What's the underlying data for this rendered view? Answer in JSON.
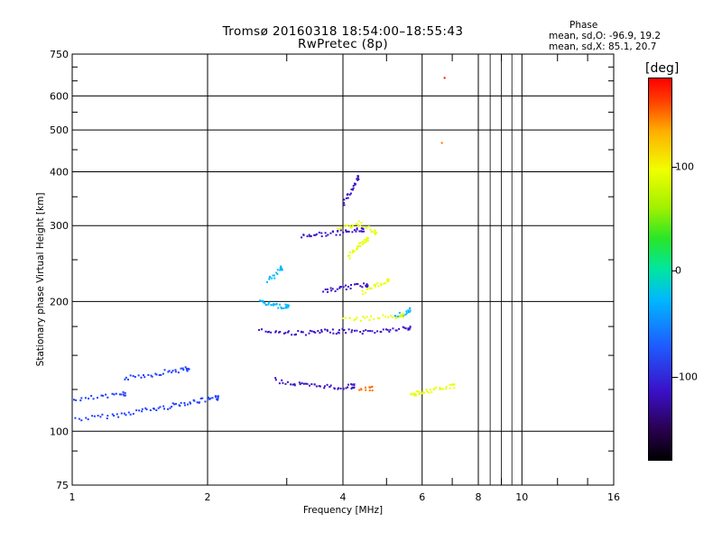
{
  "header": {
    "title_line1": "Tromsø 20160318 18:54:00–18:55:43",
    "title_line2": "RwPretec (8p)"
  },
  "phase_box": {
    "heading": "Phase",
    "line_o": "mean, sd,O: -96.9, 19.2",
    "line_x": "mean, sd,X:  85.1, 20.7"
  },
  "colorbar": {
    "unit": "[deg]",
    "ticks": [
      "100",
      "0",
      "-100"
    ],
    "colors": [
      "#000000",
      "#3a10c8",
      "#1e5cff",
      "#00b8ff",
      "#00e6a0",
      "#28e628",
      "#f0ff00",
      "#ffb000",
      "#ff0000"
    ]
  },
  "chart_data": {
    "type": "scatter",
    "xlabel": "Frequency [MHz]",
    "ylabel": "Stationary phase Virtual Height [km]",
    "xscale": "log",
    "yscale": "log",
    "xlim": [
      1,
      16
    ],
    "ylim": [
      75,
      750
    ],
    "xticks": [
      "1",
      "2",
      "4",
      "6",
      "8",
      "10",
      "16"
    ],
    "xtick_values": [
      1,
      2,
      4,
      6,
      8,
      10,
      16
    ],
    "yticks": [
      "750",
      "600",
      "500",
      "400",
      "300",
      "200",
      "100",
      "75"
    ],
    "ytick_values": [
      750,
      600,
      500,
      400,
      300,
      200,
      100,
      75
    ],
    "grid": true,
    "series": [
      {
        "color": "#1e40ff",
        "traces": [
          {
            "f": [
              1.0,
              1.1,
              1.2,
              1.3,
              1.4,
              1.5,
              1.6,
              1.7,
              1.8,
              1.9,
              2.0,
              2.1
            ],
            "h": [
              107,
              108,
              109,
              110,
              112,
              113,
              114,
              116,
              117,
              118,
              119,
              120
            ]
          },
          {
            "f": [
              1.3,
              1.4,
              1.5,
              1.6,
              1.7,
              1.8
            ],
            "h": [
              133,
              135,
              136,
              138,
              139,
              140
            ]
          },
          {
            "f": [
              1.0,
              1.1,
              1.2,
              1.3
            ],
            "h": [
              118,
              120,
              121,
              123
            ]
          }
        ]
      },
      {
        "color": "#3a10c8",
        "traces": [
          {
            "f": [
              2.6,
              2.8,
              3.0,
              3.2,
              3.4,
              3.6,
              3.8,
              4.0,
              4.3,
              4.6,
              4.9,
              5.2,
              5.6
            ],
            "h": [
              172,
              171,
              170,
              170,
              170,
              171,
              171,
              172,
              171,
              171,
              172,
              173,
              174
            ]
          },
          {
            "f": [
              3.2,
              3.4,
              3.6,
              3.8,
              4.0,
              4.2,
              4.4
            ],
            "h": [
              285,
              287,
              288,
              289,
              291,
              293,
              295
            ]
          },
          {
            "f": [
              2.8,
              3.0,
              3.2,
              3.4,
              3.6,
              3.8,
              4.0,
              4.2
            ],
            "h": [
              132,
              130,
              129,
              128,
              128,
              127,
              127,
              128
            ]
          },
          {
            "f": [
              3.6,
              3.8,
              4.0,
              4.2,
              4.5
            ],
            "h": [
              212,
              214,
              216,
              218,
              220
            ]
          },
          {
            "f": [
              4.0,
              4.1,
              4.2,
              4.3
            ],
            "h": [
              340,
              355,
              370,
              390
            ]
          }
        ]
      },
      {
        "color": "#00b8ff",
        "traces": [
          {
            "f": [
              2.6,
              2.7,
              2.8,
              2.9,
              3.0
            ],
            "h": [
              200,
              198,
              197,
              196,
              196
            ]
          },
          {
            "f": [
              2.7,
              2.8,
              2.9
            ],
            "h": [
              225,
              230,
              240
            ]
          },
          {
            "f": [
              5.2,
              5.4,
              5.6
            ],
            "h": [
              185,
              188,
              192
            ]
          }
        ]
      },
      {
        "color": "#e8ff00",
        "traces": [
          {
            "f": [
              3.9,
              4.1,
              4.3,
              4.5,
              4.7
            ],
            "h": [
              295,
              300,
              305,
              300,
              290
            ]
          },
          {
            "f": [
              4.1,
              4.2,
              4.3,
              4.4,
              4.5
            ],
            "h": [
              255,
              262,
              270,
              275,
              280
            ]
          },
          {
            "f": [
              4.4,
              4.6,
              4.8,
              5.0
            ],
            "h": [
              210,
              215,
              220,
              225
            ]
          },
          {
            "f": [
              4.0,
              4.3,
              4.6,
              5.0,
              5.4
            ],
            "h": [
              182,
              183,
              184,
              185,
              186
            ]
          },
          {
            "f": [
              5.6,
              5.8,
              6.0,
              6.3,
              6.6,
              7.0
            ],
            "h": [
              123,
              123,
              124,
              125,
              126,
              128
            ]
          }
        ]
      },
      {
        "color": "#ff7000",
        "traces": [
          {
            "f": [
              4.3,
              4.6
            ],
            "h": [
              126,
              126
            ]
          },
          {
            "f": [
              6.6
            ],
            "h": [
              465
            ]
          }
        ]
      },
      {
        "color": "#ff1000",
        "traces": [
          {
            "f": [
              6.7
            ],
            "h": [
              660
            ]
          }
        ]
      }
    ]
  }
}
